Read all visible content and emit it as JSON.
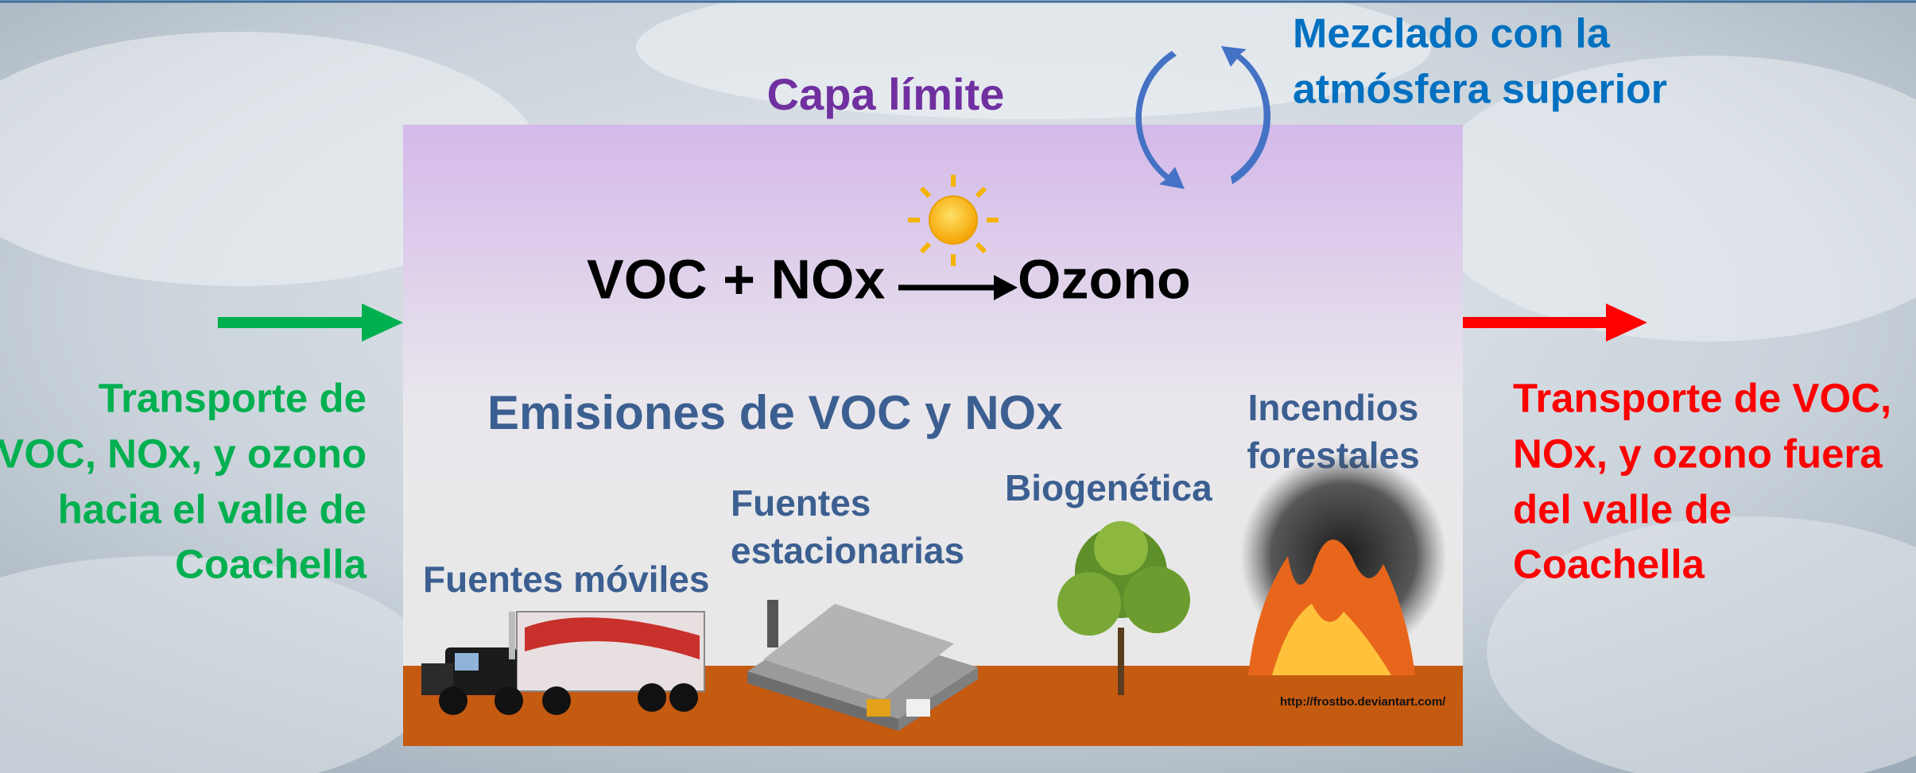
{
  "boundary_layer": "Capa límite",
  "mixing": [
    "Mezclado con la",
    "atmósfera superior"
  ],
  "reaction": {
    "reactants": "VOC + NOx",
    "product": "Ozono"
  },
  "emissions_title": "Emisiones de VOC y NOx",
  "sources": {
    "mobile": [
      "Fuentes móviles"
    ],
    "stationary": [
      "Fuentes",
      "estacionarias"
    ],
    "biogenic": [
      "Biogenética"
    ],
    "wildfires": [
      "Incendios",
      "forestales"
    ]
  },
  "inflow": [
    "Transporte de",
    "VOC, NOx, y ozono",
    "hacia el valle de",
    "Coachella"
  ],
  "outflow": [
    "Transporte de VOC,",
    "NOx, y ozono fuera",
    "del valle de",
    "Coachella"
  ],
  "credit": "http://frostbo.deviantart.com/"
}
